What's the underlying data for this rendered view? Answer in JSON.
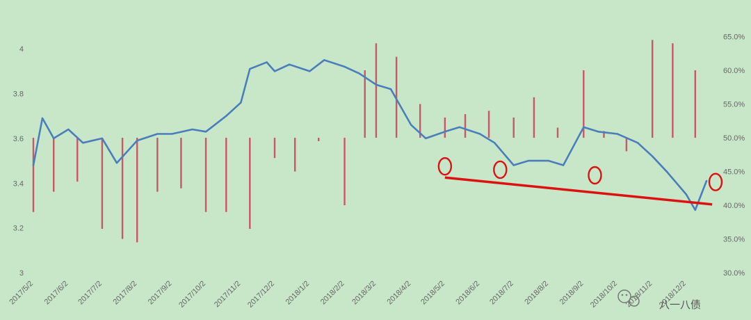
{
  "chart_data": {
    "type": "line",
    "title": "",
    "xlabel": "",
    "ylabel": "",
    "grid": false,
    "legend_position": "bottom",
    "x_ticks": [
      "2017/5/2",
      "2017/6/2",
      "2017/7/2",
      "2017/8/2",
      "2017/9/2",
      "2017/10/2",
      "2017/11/2",
      "2017/12/2",
      "2018/1/2",
      "2018/2/2",
      "2018/3/2",
      "2018/4/2",
      "2018/5/2",
      "2018/6/2",
      "2018/7/2",
      "2018/8/2",
      "2018/9/2",
      "2018/10/2",
      "2018/11/2",
      "2018/12/2"
    ],
    "y_left": {
      "ticks": [
        "3",
        "3.2",
        "3.4",
        "3.6",
        "3.8",
        "4"
      ],
      "range": [
        3.0,
        4.1
      ]
    },
    "y_right": {
      "ticks": [
        "30.0%",
        "35.0%",
        "40.0%",
        "45.0%",
        "50.0%",
        "55.0%",
        "60.0%",
        "65.0%"
      ],
      "range": [
        30.0,
        66.5
      ],
      "baseline": 50.0
    },
    "series": [
      {
        "axis": "left",
        "style": "line",
        "color": "#4a7ebb",
        "x": [
          "2017/5/2",
          "2017/5/10",
          "2017/5/20",
          "2017/6/2",
          "2017/6/15",
          "2017/7/2",
          "2017/7/15",
          "2017/8/2",
          "2017/8/20",
          "2017/9/2",
          "2017/9/20",
          "2017/10/2",
          "2017/10/20",
          "2017/11/2",
          "2017/11/10",
          "2017/11/25",
          "2017/12/2",
          "2017/12/15",
          "2018/1/2",
          "2018/1/15",
          "2018/2/2",
          "2018/2/15",
          "2018/3/2",
          "2018/3/15",
          "2018/4/2",
          "2018/4/15",
          "2018/5/2",
          "2018/5/15",
          "2018/6/2",
          "2018/6/15",
          "2018/7/2",
          "2018/7/15",
          "2018/8/2",
          "2018/8/15",
          "2018/9/2",
          "2018/9/15",
          "2018/10/2",
          "2018/10/20",
          "2018/11/2",
          "2018/11/15",
          "2018/12/2",
          "2018/12/10",
          "2018/12/20"
        ],
        "y": [
          3.48,
          3.69,
          3.6,
          3.64,
          3.58,
          3.6,
          3.49,
          3.59,
          3.62,
          3.62,
          3.64,
          3.63,
          3.7,
          3.76,
          3.91,
          3.94,
          3.9,
          3.93,
          3.9,
          3.95,
          3.92,
          3.89,
          3.84,
          3.82,
          3.66,
          3.6,
          3.63,
          3.65,
          3.62,
          3.58,
          3.48,
          3.5,
          3.5,
          3.48,
          3.65,
          3.63,
          3.62,
          3.58,
          3.52,
          3.45,
          3.35,
          3.28,
          3.41
        ]
      },
      {
        "axis": "right",
        "style": "bar",
        "color": "#c9485b",
        "x": [
          "2017/5/2",
          "2017/5/20",
          "2017/6/10",
          "2017/7/2",
          "2017/7/20",
          "2017/8/2",
          "2017/8/20",
          "2017/9/10",
          "2017/10/2",
          "2017/10/20",
          "2017/11/10",
          "2017/12/2",
          "2017/12/20",
          "2018/1/10",
          "2018/2/2",
          "2018/2/20",
          "2018/3/2",
          "2018/3/20",
          "2018/4/10",
          "2018/5/2",
          "2018/5/20",
          "2018/6/10",
          "2018/7/2",
          "2018/7/20",
          "2018/8/10",
          "2018/9/2",
          "2018/9/20",
          "2018/10/10",
          "2018/11/2",
          "2018/11/20",
          "2018/12/10"
        ],
        "y": [
          39.0,
          42.0,
          43.5,
          36.5,
          35.0,
          34.5,
          42.0,
          42.5,
          39.0,
          39.0,
          36.5,
          47.0,
          45.0,
          49.5,
          40.0,
          60.0,
          64.0,
          62.0,
          55.0,
          53.0,
          53.5,
          54.0,
          53.0,
          56.0,
          51.5,
          60.0,
          51.0,
          48.0,
          64.5,
          64.0,
          60.0
        ]
      }
    ],
    "annotations": [
      {
        "type": "line",
        "color": "#dd1111",
        "from": [
          "2018/5/2",
          3.425
        ],
        "to": [
          "2018/12/25",
          3.305
        ]
      },
      {
        "type": "ellipse",
        "color": "#dd1111",
        "at": [
          "2018/5/2",
          3.475
        ]
      },
      {
        "type": "ellipse",
        "color": "#dd1111",
        "at": [
          "2018/6/20",
          3.46
        ]
      },
      {
        "type": "ellipse",
        "color": "#dd1111",
        "at": [
          "2018/9/12",
          3.435
        ]
      },
      {
        "type": "ellipse",
        "color": "#dd1111",
        "at": [
          "2018/12/28",
          3.405
        ]
      }
    ]
  },
  "watermark": {
    "text": "八一八债",
    "icon": "wechat-icon"
  },
  "colors": {
    "background": "#c8e7c8",
    "line": "#4a7ebb",
    "bars": "#c9485b",
    "annotation": "#dd1111"
  }
}
